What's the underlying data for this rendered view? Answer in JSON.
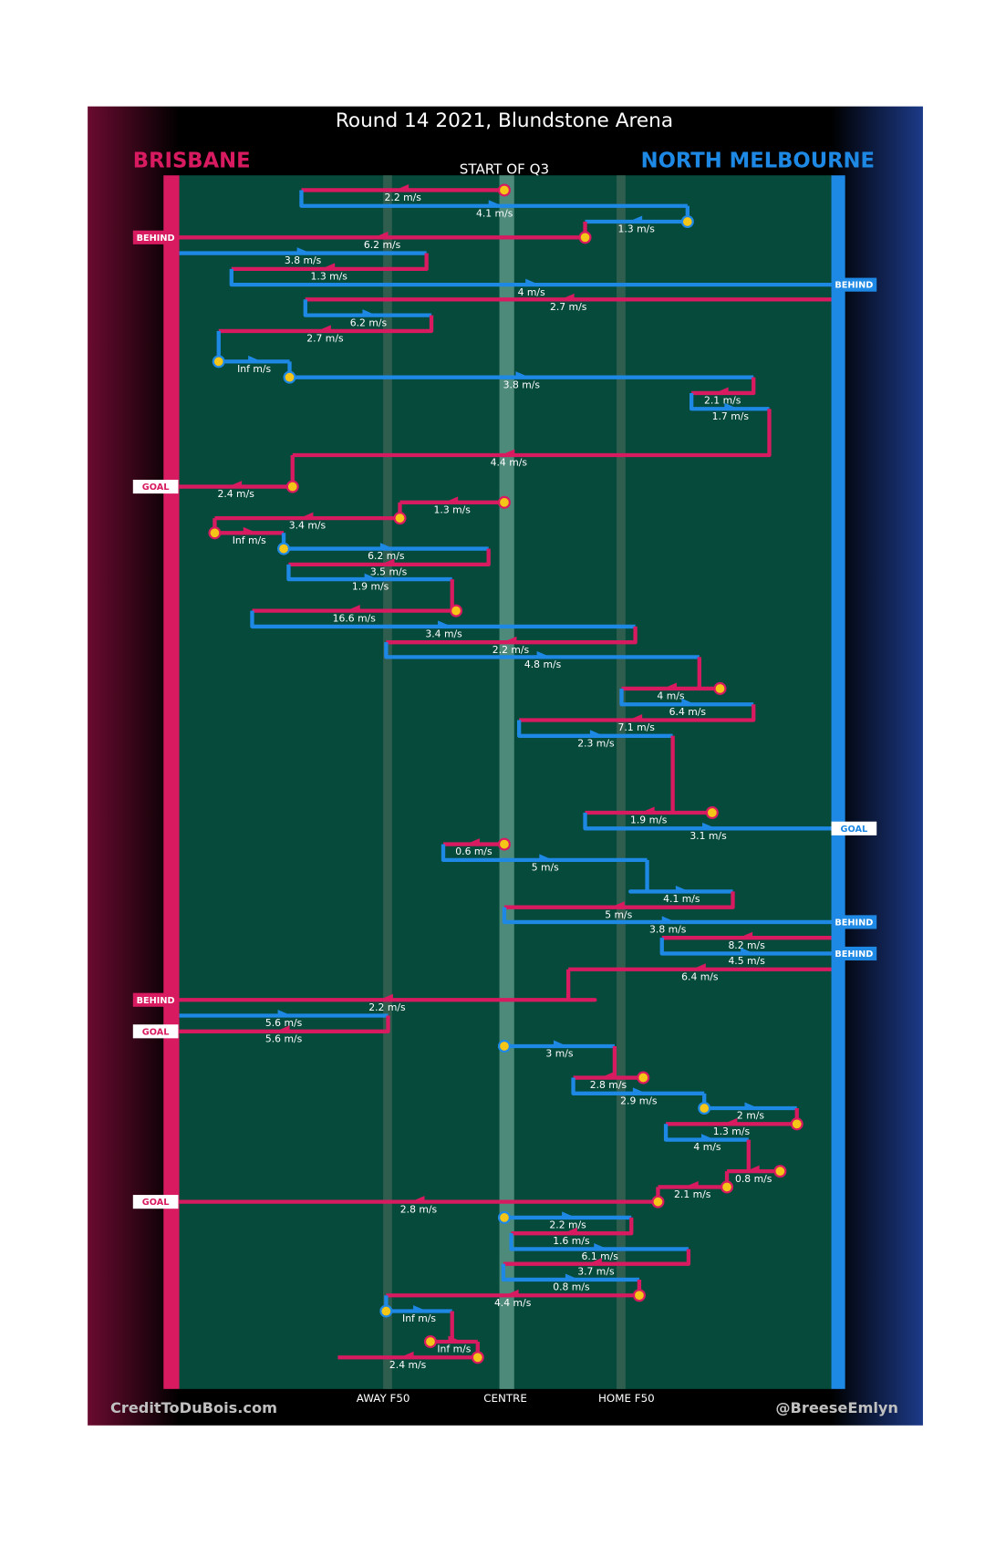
{
  "title": "Round 14 2021, Blundstone Arena",
  "teams": [
    "BRISBANE",
    "NORTH MELBOURNE"
  ],
  "team_colors": [
    "#d81b60",
    "#1e88e5"
  ],
  "period": "START OF Q3",
  "field_labels": [
    "AWAY F50",
    "CENTRE",
    "HOME F50"
  ],
  "credits": [
    "CreditToDuBois.com",
    "@BreeseEmlyn"
  ],
  "legs": [
    {
      "color": "#d81b60",
      "label": "2.2 m/s"
    },
    {
      "color": "#1e88e5",
      "label": "4.1 m/s"
    },
    {
      "color": "#1e88e5",
      "label": "1.3 m/s"
    },
    {
      "color": "#d81b60",
      "label": "6.2 m/s",
      "outcome": "BEHIND"
    },
    {
      "color": "#1e88e5",
      "label": "3.8 m/s"
    },
    {
      "color": "#d81b60",
      "label": "1.3 m/s"
    },
    {
      "color": "#1e88e5",
      "label": "4 m/s",
      "outcome": "BEHIND"
    },
    {
      "color": "#d81b60",
      "label": "2.7 m/s"
    },
    {
      "color": "#1e88e5",
      "label": "6.2 m/s"
    },
    {
      "color": "#d81b60",
      "label": "2.7 m/s"
    },
    {
      "color": "#1e88e5",
      "label": "Inf m/s"
    },
    {
      "color": "#1e88e5",
      "label": "3.8 m/s"
    },
    {
      "color": "#d81b60",
      "label": "2.1 m/s"
    },
    {
      "color": "#1e88e5",
      "label": "1.7 m/s"
    },
    {
      "color": "#d81b60",
      "label": "4.4 m/s"
    },
    {
      "color": "#d81b60",
      "label": "2.4 m/s",
      "outcome": "GOAL"
    },
    {
      "color": "#d81b60",
      "label": "1.3 m/s"
    },
    {
      "color": "#d81b60",
      "label": "3.4 m/s"
    },
    {
      "color": "#d81b60",
      "label": "Inf m/s"
    },
    {
      "color": "#1e88e5",
      "label": "6.2 m/s"
    },
    {
      "color": "#d81b60",
      "label": "3.5 m/s"
    },
    {
      "color": "#1e88e5",
      "label": "1.9 m/s"
    },
    {
      "color": "#d81b60",
      "label": "16.6 m/s"
    },
    {
      "color": "#1e88e5",
      "label": "3.4 m/s"
    },
    {
      "color": "#d81b60",
      "label": "2.2 m/s"
    },
    {
      "color": "#1e88e5",
      "label": "4.8 m/s"
    },
    {
      "color": "#d81b60",
      "label": "4 m/s"
    },
    {
      "color": "#1e88e5",
      "label": "6.4 m/s"
    },
    {
      "color": "#d81b60",
      "label": "7.1 m/s"
    },
    {
      "color": "#1e88e5",
      "label": "2.3 m/s"
    },
    {
      "color": "#d81b60",
      "label": "1.9 m/s"
    },
    {
      "color": "#1e88e5",
      "label": "3.1 m/s",
      "outcome": "GOAL"
    },
    {
      "color": "#d81b60",
      "label": "0.6 m/s"
    },
    {
      "color": "#1e88e5",
      "label": "5 m/s"
    },
    {
      "color": "#1e88e5",
      "label": "4.1 m/s"
    },
    {
      "color": "#d81b60",
      "label": "5 m/s"
    },
    {
      "color": "#1e88e5",
      "label": "3.8 m/s",
      "outcome": "BEHIND"
    },
    {
      "color": "#d81b60",
      "label": "8.2 m/s"
    },
    {
      "color": "#1e88e5",
      "label": "4.5 m/s",
      "outcome": "BEHIND"
    },
    {
      "color": "#d81b60",
      "label": "6.4 m/s"
    },
    {
      "color": "#d81b60",
      "label": "2.2 m/s",
      "outcome": "BEHIND"
    },
    {
      "color": "#1e88e5",
      "label": "5.6 m/s"
    },
    {
      "color": "#d81b60",
      "label": "5.6 m/s",
      "outcome": "GOAL"
    },
    {
      "color": "#1e88e5",
      "label": "3 m/s"
    },
    {
      "color": "#d81b60",
      "label": "2.8 m/s"
    },
    {
      "color": "#1e88e5",
      "label": "2.9 m/s"
    },
    {
      "color": "#1e88e5",
      "label": "2 m/s"
    },
    {
      "color": "#d81b60",
      "label": "1.3 m/s"
    },
    {
      "color": "#1e88e5",
      "label": "4 m/s"
    },
    {
      "color": "#d81b60",
      "label": "0.8 m/s"
    },
    {
      "color": "#d81b60",
      "label": "2.1 m/s"
    },
    {
      "color": "#d81b60",
      "label": "2.8 m/s",
      "outcome": "GOAL"
    },
    {
      "color": "#1e88e5",
      "label": "2.2 m/s"
    },
    {
      "color": "#d81b60",
      "label": "1.6 m/s"
    },
    {
      "color": "#1e88e5",
      "label": "6.1 m/s"
    },
    {
      "color": "#d81b60",
      "label": "3.7 m/s"
    },
    {
      "color": "#1e88e5",
      "label": "0.8 m/s"
    },
    {
      "color": "#d81b60",
      "label": "4.4 m/s"
    },
    {
      "color": "#1e88e5",
      "label": "Inf m/s"
    },
    {
      "color": "#d81b60",
      "label": "Inf m/s"
    },
    {
      "color": "#d81b60",
      "label": "2.4 m/s"
    }
  ]
}
